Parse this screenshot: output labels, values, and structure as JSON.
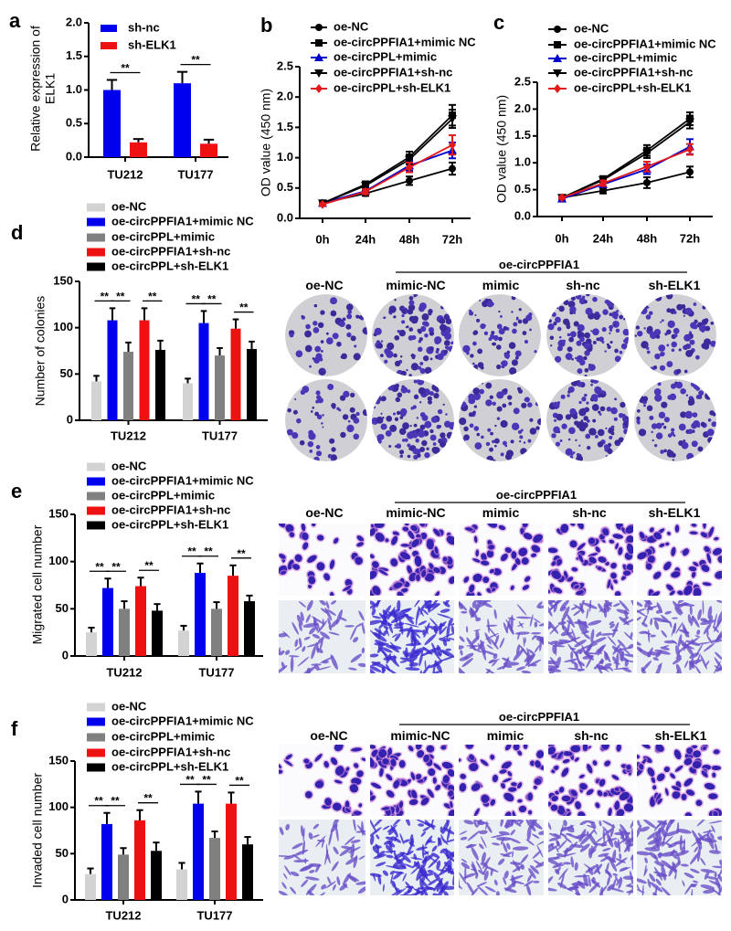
{
  "panel_labels": {
    "a": "a",
    "b": "b",
    "c": "c",
    "d": "d",
    "e": "e",
    "f": "f"
  },
  "colors": {
    "oe_nc": "#d3d3d3",
    "mimic_nc": "#0000ee",
    "mimic": "#808080",
    "sh_nc": "#ee1111",
    "sh_elk1": "#000000"
  },
  "chart_data": [
    {
      "id": "a",
      "type": "bar",
      "ylabel": [
        "Relative expression of",
        "ELK1"
      ],
      "categories": [
        "TU212",
        "TU177"
      ],
      "ylim": [
        0,
        2.0
      ],
      "yticks": [
        {
          "v": 0,
          "label": "0.0"
        },
        {
          "v": 0.5,
          "label": "0.5"
        },
        {
          "v": 1.0,
          "label": "1.0"
        },
        {
          "v": 1.5,
          "label": "1.5"
        },
        {
          "v": 2.0,
          "label": "2.0"
        }
      ],
      "series": [
        {
          "name": "sh-nc",
          "color": "#0000ee",
          "values": [
            1.0,
            1.1
          ],
          "errors": [
            0.15,
            0.17
          ]
        },
        {
          "name": "sh-ELK1",
          "color": "#ee1111",
          "values": [
            0.22,
            0.2
          ],
          "errors": [
            0.05,
            0.06
          ]
        }
      ],
      "significance": [
        {
          "category": 0,
          "pair": [
            0,
            1
          ],
          "label": "**"
        },
        {
          "category": 1,
          "pair": [
            0,
            1
          ],
          "label": "**"
        }
      ]
    },
    {
      "id": "b",
      "type": "line",
      "ylabel": [
        "OD value (450 nm)"
      ],
      "x": [
        "0h",
        "24h",
        "48h",
        "72h"
      ],
      "ylim": [
        0,
        2.5
      ],
      "yticks": [
        {
          "v": 0,
          "label": "0.0"
        },
        {
          "v": 0.5,
          "label": "0.5"
        },
        {
          "v": 1.0,
          "label": "1.0"
        },
        {
          "v": 1.5,
          "label": "1.5"
        },
        {
          "v": 2.0,
          "label": "2.0"
        },
        {
          "v": 2.5,
          "label": "2.5"
        }
      ],
      "series": [
        {
          "name": "oe-NC",
          "color": "#000000",
          "marker": "circle",
          "values": [
            0.25,
            0.41,
            0.62,
            0.82
          ],
          "errors": [
            0.02,
            0.04,
            0.07,
            0.1
          ]
        },
        {
          "name": "oe-circPPFIA1+mimic NC",
          "color": "#000000",
          "marker": "square",
          "values": [
            0.25,
            0.56,
            1.01,
            1.7
          ],
          "errors": [
            0.02,
            0.05,
            0.09,
            0.17
          ]
        },
        {
          "name": "oe-circPPL+mimic",
          "color": "#0000cc",
          "marker": "triangle-up",
          "values": [
            0.25,
            0.45,
            0.87,
            1.12
          ],
          "errors": [
            0.02,
            0.05,
            0.08,
            0.13
          ]
        },
        {
          "name": "oe-circPPFIA1+sh-nc",
          "color": "#000000",
          "marker": "triangle-down",
          "values": [
            0.25,
            0.54,
            0.97,
            1.64
          ],
          "errors": [
            0.02,
            0.05,
            0.08,
            0.15
          ]
        },
        {
          "name": "oe-circPPL+sh-ELK1",
          "color": "#e31a1c",
          "marker": "diamond",
          "values": [
            0.23,
            0.44,
            0.84,
            1.21
          ],
          "errors": [
            0.02,
            0.04,
            0.08,
            0.16
          ]
        }
      ]
    },
    {
      "id": "c",
      "type": "line",
      "ylabel": [
        "OD value (450 nm)"
      ],
      "x": [
        "0h",
        "24h",
        "48h",
        "72h"
      ],
      "ylim": [
        0,
        2.5
      ],
      "yticks": [
        {
          "v": 0,
          "label": "0.0"
        },
        {
          "v": 0.5,
          "label": "0.5"
        },
        {
          "v": 1.0,
          "label": "1.0"
        },
        {
          "v": 1.5,
          "label": "1.5"
        },
        {
          "v": 2.0,
          "label": "2.0"
        },
        {
          "v": 2.5,
          "label": "2.5"
        }
      ],
      "series": [
        {
          "name": "oe-NC",
          "color": "#000000",
          "marker": "circle",
          "values": [
            0.35,
            0.48,
            0.63,
            0.83
          ],
          "errors": [
            0.02,
            0.05,
            0.1,
            0.1
          ]
        },
        {
          "name": "oe-circPPFIA1+mimic NC",
          "color": "#000000",
          "marker": "square",
          "values": [
            0.35,
            0.7,
            1.23,
            1.82
          ],
          "errors": [
            0.02,
            0.05,
            0.1,
            0.12
          ]
        },
        {
          "name": "oe-circPPL+mimic",
          "color": "#0000cc",
          "marker": "triangle-up",
          "values": [
            0.33,
            0.6,
            0.88,
            1.3
          ],
          "errors": [
            0.02,
            0.05,
            0.09,
            0.14
          ]
        },
        {
          "name": "oe-circPPFIA1+sh-nc",
          "color": "#000000",
          "marker": "triangle-down",
          "values": [
            0.35,
            0.68,
            1.18,
            1.76
          ],
          "errors": [
            0.02,
            0.05,
            0.09,
            0.12
          ]
        },
        {
          "name": "oe-circPPL+sh-ELK1",
          "color": "#e31a1c",
          "marker": "diamond",
          "values": [
            0.35,
            0.62,
            0.93,
            1.25
          ],
          "errors": [
            0.02,
            0.05,
            0.09,
            0.1
          ]
        }
      ]
    },
    {
      "id": "d",
      "type": "bar",
      "ylabel": [
        "Number of colonies"
      ],
      "categories": [
        "TU212",
        "TU177"
      ],
      "ylim": [
        0,
        150
      ],
      "yticks": [
        {
          "v": 0,
          "label": "0"
        },
        {
          "v": 50,
          "label": "50"
        },
        {
          "v": 100,
          "label": "100"
        },
        {
          "v": 150,
          "label": "150"
        }
      ],
      "series": [
        {
          "name": "oe-NC",
          "color": "#d3d3d3",
          "values": [
            42,
            40
          ],
          "errors": [
            6,
            5
          ]
        },
        {
          "name": "oe-circPPFIA1+mimic NC",
          "color": "#0000ee",
          "values": [
            108,
            105
          ],
          "errors": [
            13,
            13
          ]
        },
        {
          "name": "oe-circPPL+mimic",
          "color": "#808080",
          "values": [
            74,
            70
          ],
          "errors": [
            10,
            8
          ]
        },
        {
          "name": "oe-circPPFIA1+sh-nc",
          "color": "#ee1111",
          "values": [
            108,
            99
          ],
          "errors": [
            13,
            10
          ]
        },
        {
          "name": "oe-circPPL+sh-ELK1",
          "color": "#000000",
          "values": [
            76,
            77
          ],
          "errors": [
            10,
            8
          ]
        }
      ],
      "significance": [
        {
          "category": 0,
          "pair": [
            0,
            1
          ],
          "label": "**"
        },
        {
          "category": 0,
          "pair": [
            1,
            2
          ],
          "label": "**"
        },
        {
          "category": 0,
          "pair": [
            3,
            4
          ],
          "label": "**"
        },
        {
          "category": 1,
          "pair": [
            0,
            1
          ],
          "label": "**"
        },
        {
          "category": 1,
          "pair": [
            1,
            2
          ],
          "label": "**"
        },
        {
          "category": 1,
          "pair": [
            3,
            4
          ],
          "label": "**"
        }
      ]
    },
    {
      "id": "e",
      "type": "bar",
      "ylabel": [
        "Migrated cell number"
      ],
      "categories": [
        "TU212",
        "TU177"
      ],
      "ylim": [
        0,
        150
      ],
      "yticks": [
        {
          "v": 0,
          "label": "0"
        },
        {
          "v": 50,
          "label": "50"
        },
        {
          "v": 100,
          "label": "100"
        },
        {
          "v": 150,
          "label": "150"
        }
      ],
      "series": [
        {
          "name": "oe-NC",
          "color": "#d3d3d3",
          "values": [
            25,
            27
          ],
          "errors": [
            5,
            5
          ]
        },
        {
          "name": "oe-circPPFIA1+mimic NC",
          "color": "#0000ee",
          "values": [
            72,
            88
          ],
          "errors": [
            10,
            10
          ]
        },
        {
          "name": "oe-circPPL+mimic",
          "color": "#808080",
          "values": [
            50,
            50
          ],
          "errors": [
            8,
            7
          ]
        },
        {
          "name": "oe-circPPFIA1+sh-nc",
          "color": "#ee1111",
          "values": [
            74,
            85
          ],
          "errors": [
            9,
            11
          ]
        },
        {
          "name": "oe-circPPL+sh-ELK1",
          "color": "#000000",
          "values": [
            48,
            58
          ],
          "errors": [
            7,
            6
          ]
        }
      ],
      "significance": [
        {
          "category": 0,
          "pair": [
            0,
            1
          ],
          "label": "**"
        },
        {
          "category": 0,
          "pair": [
            1,
            2
          ],
          "label": "**"
        },
        {
          "category": 0,
          "pair": [
            3,
            4
          ],
          "label": "**"
        },
        {
          "category": 1,
          "pair": [
            0,
            1
          ],
          "label": "**"
        },
        {
          "category": 1,
          "pair": [
            1,
            2
          ],
          "label": "**"
        },
        {
          "category": 1,
          "pair": [
            3,
            4
          ],
          "label": "**"
        }
      ]
    },
    {
      "id": "f",
      "type": "bar",
      "ylabel": [
        "Invaded cell number"
      ],
      "categories": [
        "TU212",
        "TU177"
      ],
      "ylim": [
        0,
        150
      ],
      "yticks": [
        {
          "v": 0,
          "label": "0"
        },
        {
          "v": 50,
          "label": "50"
        },
        {
          "v": 100,
          "label": "100"
        },
        {
          "v": 150,
          "label": "150"
        }
      ],
      "series": [
        {
          "name": "oe-NC",
          "color": "#d3d3d3",
          "values": [
            28,
            33
          ],
          "errors": [
            6,
            7
          ]
        },
        {
          "name": "oe-circPPFIA1+mimic NC",
          "color": "#0000ee",
          "values": [
            82,
            104
          ],
          "errors": [
            12,
            13
          ]
        },
        {
          "name": "oe-circPPL+mimic",
          "color": "#808080",
          "values": [
            49,
            67
          ],
          "errors": [
            7,
            7
          ]
        },
        {
          "name": "oe-circPPFIA1+sh-nc",
          "color": "#ee1111",
          "values": [
            86,
            104
          ],
          "errors": [
            11,
            12
          ]
        },
        {
          "name": "oe-circPPL+sh-ELK1",
          "color": "#000000",
          "values": [
            53,
            60
          ],
          "errors": [
            9,
            8
          ]
        }
      ],
      "significance": [
        {
          "category": 0,
          "pair": [
            0,
            1
          ],
          "label": "**"
        },
        {
          "category": 0,
          "pair": [
            1,
            2
          ],
          "label": "**"
        },
        {
          "category": 0,
          "pair": [
            3,
            4
          ],
          "label": "**"
        },
        {
          "category": 1,
          "pair": [
            0,
            1
          ],
          "label": "**"
        },
        {
          "category": 1,
          "pair": [
            1,
            2
          ],
          "label": "**"
        },
        {
          "category": 1,
          "pair": [
            3,
            4
          ],
          "label": "**"
        }
      ]
    }
  ],
  "image_panels": [
    {
      "id": "d",
      "kind": "colony",
      "group_label": "oe-circPPFIA1",
      "columns": [
        "oe-NC",
        "mimic-NC",
        "mimic",
        "sh-nc",
        "sh-ELK1"
      ]
    },
    {
      "id": "e",
      "kind": "transwell",
      "group_label": "oe-circPPFIA1",
      "columns": [
        "oe-NC",
        "mimic-NC",
        "mimic",
        "sh-nc",
        "sh-ELK1"
      ]
    },
    {
      "id": "f",
      "kind": "transwell",
      "group_label": "oe-circPPFIA1",
      "columns": [
        "oe-NC",
        "mimic-NC",
        "mimic",
        "sh-nc",
        "sh-ELK1"
      ]
    }
  ]
}
